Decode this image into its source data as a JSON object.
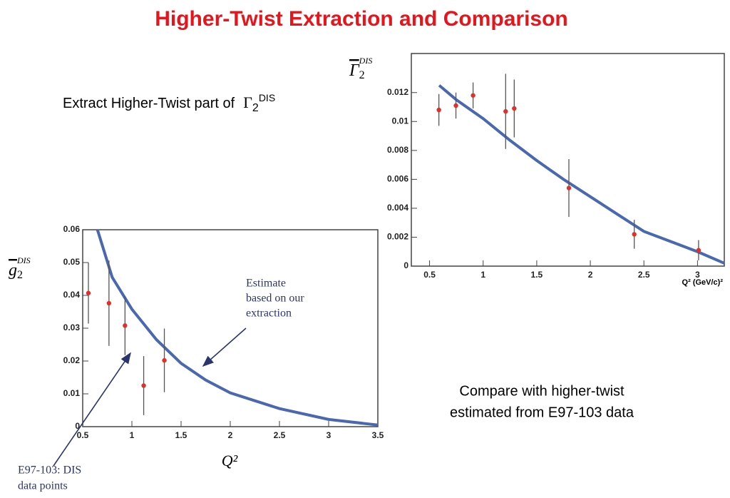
{
  "slide": {
    "title": "Higher-Twist Extraction and Comparison",
    "extract_text": {
      "text": "Extract Higher-Twist part of",
      "symbol": "Γ",
      "subscript": "2",
      "superscript": "DIS"
    },
    "compare_text": [
      "Compare with higher-twist",
      "estimated from E97-103 data"
    ]
  },
  "chart_data": [
    {
      "type": "scatter",
      "xlabel": "Q² (GeV/c)²",
      "ylabel": {
        "symbol": "Γ",
        "subscript": "2",
        "superscript": "DIS"
      },
      "xlim": [
        0.33,
        3.25
      ],
      "ylim": [
        0,
        0.0147
      ],
      "xticks": [
        0.5,
        1,
        1.5,
        2,
        2.5,
        3
      ],
      "yticks": [
        0,
        0.002,
        0.004,
        0.006,
        0.008,
        0.01,
        0.012
      ],
      "points": {
        "color": "#e0302a",
        "x": [
          0.587,
          0.746,
          0.906,
          1.21,
          1.29,
          1.8,
          2.41,
          3.01
        ],
        "values": [
          0.0108,
          0.0111,
          0.0118,
          0.0107,
          0.0109,
          0.0054,
          0.0022,
          0.0011
        ],
        "errors": [
          0.0011,
          0.0009,
          0.0009,
          0.0026,
          0.002,
          0.002,
          0.001,
          0.0007
        ]
      },
      "curve": {
        "color": "#4a68b0",
        "x": [
          0.59,
          0.75,
          1,
          1.25,
          1.5,
          1.75,
          2,
          2.25,
          2.5,
          2.75,
          3,
          3.25
        ],
        "values": [
          0.0125,
          0.0115,
          0.0102,
          0.0087,
          0.0073,
          0.006,
          0.0048,
          0.0036,
          0.0024,
          0.0017,
          0.001,
          0.0002
        ]
      }
    },
    {
      "type": "scatter",
      "xlabel": "Q²",
      "ylabel": {
        "symbol": "g",
        "subscript": "2",
        "superscript": "DIS"
      },
      "xlim": [
        0.5,
        3.5
      ],
      "ylim": [
        0,
        0.06
      ],
      "xticks": [
        0.5,
        1,
        1.5,
        2,
        2.5,
        3,
        3.5
      ],
      "yticks": [
        0,
        0.01,
        0.02,
        0.03,
        0.04,
        0.05,
        0.06
      ],
      "points": {
        "color": "#e0302a",
        "x": [
          0.558,
          0.767,
          0.93,
          1.12,
          1.33
        ],
        "values": [
          0.0407,
          0.0376,
          0.0308,
          0.0125,
          0.0202
        ],
        "errors": [
          0.0093,
          0.013,
          0.009,
          0.009,
          0.0097
        ]
      },
      "curve": {
        "color": "#4a68b0",
        "x": [
          0.65,
          0.8,
          1,
          1.25,
          1.5,
          1.75,
          2,
          2.5,
          3,
          3.5
        ],
        "values": [
          0.06,
          0.0455,
          0.0358,
          0.0265,
          0.0193,
          0.0142,
          0.0103,
          0.0055,
          0.0022,
          0.0005
        ]
      },
      "annotations": [
        {
          "lines": [
            "Estimate",
            "based on our",
            "extraction"
          ]
        },
        {
          "lines": [
            "E97-103: DIS",
            "data points"
          ]
        }
      ]
    }
  ]
}
